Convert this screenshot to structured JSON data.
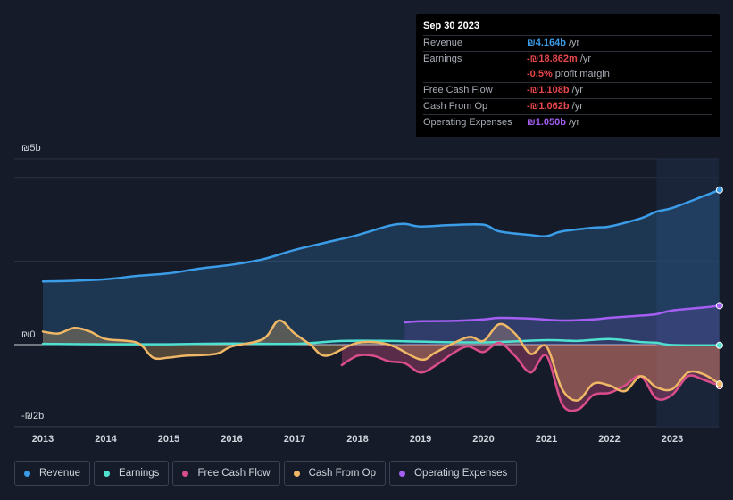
{
  "tooltip": {
    "date": "Sep 30 2023",
    "rows": [
      {
        "label": "Revenue",
        "value": "₪4.164b",
        "unit": "/yr",
        "color": "#3b9ce8"
      },
      {
        "label": "Earnings",
        "value": "-₪18.862m",
        "unit": "/yr",
        "color": "#e8474a"
      },
      {
        "label": "",
        "value": "-0.5%",
        "unit": "profit margin",
        "color": "#e8474a"
      },
      {
        "label": "Free Cash Flow",
        "value": "-₪1.108b",
        "unit": "/yr",
        "color": "#e8474a"
      },
      {
        "label": "Cash From Op",
        "value": "-₪1.062b",
        "unit": "/yr",
        "color": "#e8474a"
      },
      {
        "label": "Operating Expenses",
        "value": "₪1.050b",
        "unit": "/yr",
        "color": "#a45ff2"
      }
    ]
  },
  "chart_data": {
    "type": "line",
    "y_labels": {
      "top": "₪5b",
      "zero": "₪0",
      "bottom": "-₪2b"
    },
    "ylim": [
      -2,
      5
    ],
    "x_tick_labels": [
      "2013",
      "2014",
      "2015",
      "2016",
      "2017",
      "2018",
      "2019",
      "2020",
      "2021",
      "2022",
      "2023"
    ],
    "xlim": [
      2012.55,
      2023.8
    ],
    "forecast_start": 2022.75,
    "series": [
      {
        "name": "Revenue",
        "color": "#3b9ce8",
        "fill": true,
        "points": [
          [
            2013.0,
            1.7
          ],
          [
            2013.5,
            1.72
          ],
          [
            2014.0,
            1.76
          ],
          [
            2014.5,
            1.85
          ],
          [
            2015.0,
            1.92
          ],
          [
            2015.5,
            2.05
          ],
          [
            2016.0,
            2.15
          ],
          [
            2016.5,
            2.3
          ],
          [
            2017.0,
            2.55
          ],
          [
            2017.5,
            2.75
          ],
          [
            2018.0,
            2.95
          ],
          [
            2018.5,
            3.2
          ],
          [
            2018.75,
            3.25
          ],
          [
            2019.0,
            3.18
          ],
          [
            2019.5,
            3.22
          ],
          [
            2020.0,
            3.23
          ],
          [
            2020.25,
            3.05
          ],
          [
            2020.75,
            2.95
          ],
          [
            2021.0,
            2.92
          ],
          [
            2021.25,
            3.05
          ],
          [
            2021.75,
            3.15
          ],
          [
            2022.0,
            3.18
          ],
          [
            2022.5,
            3.4
          ],
          [
            2022.75,
            3.58
          ],
          [
            2023.0,
            3.68
          ],
          [
            2023.5,
            4.0
          ],
          [
            2023.75,
            4.164
          ]
        ]
      },
      {
        "name": "Earnings",
        "color": "#4fe0d0",
        "fill": false,
        "points": [
          [
            2013.0,
            0.02
          ],
          [
            2014.0,
            0.01
          ],
          [
            2015.0,
            0.01
          ],
          [
            2016.0,
            0.03
          ],
          [
            2017.0,
            0.02
          ],
          [
            2017.75,
            0.1
          ],
          [
            2018.5,
            0.1
          ],
          [
            2019.0,
            0.08
          ],
          [
            2020.0,
            0.06
          ],
          [
            2021.0,
            0.12
          ],
          [
            2021.5,
            0.1
          ],
          [
            2022.0,
            0.15
          ],
          [
            2022.5,
            0.07
          ],
          [
            2022.75,
            0.05
          ],
          [
            2023.0,
            -0.01
          ],
          [
            2023.75,
            -0.019
          ]
        ]
      },
      {
        "name": "Free Cash Flow",
        "color": "#d94d8a",
        "fill": true,
        "points": [
          [
            2017.75,
            -0.55
          ],
          [
            2018.0,
            -0.3
          ],
          [
            2018.25,
            -0.3
          ],
          [
            2018.5,
            -0.45
          ],
          [
            2018.75,
            -0.5
          ],
          [
            2019.0,
            -0.75
          ],
          [
            2019.25,
            -0.55
          ],
          [
            2019.5,
            -0.25
          ],
          [
            2019.75,
            -0.05
          ],
          [
            2020.0,
            -0.2
          ],
          [
            2020.25,
            0.05
          ],
          [
            2020.5,
            -0.3
          ],
          [
            2020.75,
            -0.75
          ],
          [
            2021.0,
            -0.3
          ],
          [
            2021.25,
            -1.6
          ],
          [
            2021.5,
            -1.75
          ],
          [
            2021.75,
            -1.35
          ],
          [
            2022.0,
            -1.3
          ],
          [
            2022.25,
            -1.1
          ],
          [
            2022.5,
            -0.85
          ],
          [
            2022.75,
            -1.45
          ],
          [
            2023.0,
            -1.35
          ],
          [
            2023.25,
            -0.85
          ],
          [
            2023.5,
            -0.95
          ],
          [
            2023.75,
            -1.108
          ]
        ]
      },
      {
        "name": "Cash From Op",
        "color": "#f0b866",
        "fill": true,
        "points": [
          [
            2013.0,
            0.35
          ],
          [
            2013.25,
            0.3
          ],
          [
            2013.5,
            0.45
          ],
          [
            2013.75,
            0.35
          ],
          [
            2014.0,
            0.15
          ],
          [
            2014.5,
            0.05
          ],
          [
            2014.75,
            -0.35
          ],
          [
            2015.0,
            -0.35
          ],
          [
            2015.25,
            -0.3
          ],
          [
            2015.75,
            -0.25
          ],
          [
            2016.0,
            -0.05
          ],
          [
            2016.5,
            0.15
          ],
          [
            2016.75,
            0.65
          ],
          [
            2017.0,
            0.3
          ],
          [
            2017.25,
            0.0
          ],
          [
            2017.5,
            -0.3
          ],
          [
            2018.0,
            0.05
          ],
          [
            2018.5,
            0.0
          ],
          [
            2019.0,
            -0.4
          ],
          [
            2019.25,
            -0.2
          ],
          [
            2019.75,
            0.2
          ],
          [
            2020.0,
            0.1
          ],
          [
            2020.25,
            0.55
          ],
          [
            2020.5,
            0.3
          ],
          [
            2020.75,
            -0.25
          ],
          [
            2021.0,
            -0.05
          ],
          [
            2021.25,
            -1.2
          ],
          [
            2021.5,
            -1.5
          ],
          [
            2021.75,
            -1.05
          ],
          [
            2022.0,
            -1.1
          ],
          [
            2022.25,
            -1.25
          ],
          [
            2022.5,
            -0.85
          ],
          [
            2022.75,
            -1.15
          ],
          [
            2023.0,
            -1.2
          ],
          [
            2023.25,
            -0.75
          ],
          [
            2023.5,
            -0.8
          ],
          [
            2023.75,
            -1.062
          ]
        ]
      },
      {
        "name": "Operating Expenses",
        "color": "#a45ff2",
        "fill": true,
        "points": [
          [
            2018.75,
            0.6
          ],
          [
            2019.0,
            0.63
          ],
          [
            2019.5,
            0.64
          ],
          [
            2020.0,
            0.68
          ],
          [
            2020.25,
            0.72
          ],
          [
            2020.75,
            0.7
          ],
          [
            2021.25,
            0.65
          ],
          [
            2021.75,
            0.68
          ],
          [
            2022.0,
            0.72
          ],
          [
            2022.5,
            0.78
          ],
          [
            2022.75,
            0.82
          ],
          [
            2023.0,
            0.92
          ],
          [
            2023.5,
            1.0
          ],
          [
            2023.75,
            1.05
          ]
        ]
      }
    ]
  },
  "legend": [
    {
      "label": "Revenue",
      "color": "#3b9ce8"
    },
    {
      "label": "Earnings",
      "color": "#4fe0d0"
    },
    {
      "label": "Free Cash Flow",
      "color": "#d94d8a"
    },
    {
      "label": "Cash From Op",
      "color": "#f0b866"
    },
    {
      "label": "Operating Expenses",
      "color": "#a45ff2"
    }
  ]
}
